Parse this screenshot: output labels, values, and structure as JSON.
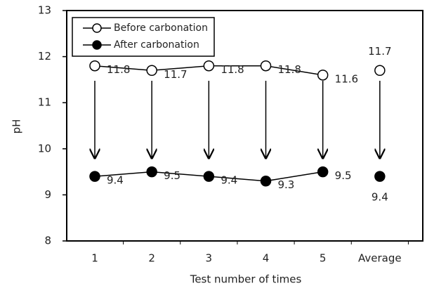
{
  "chart_data": {
    "type": "line",
    "x_label": "Test number of times",
    "y_label": "pH",
    "categories": [
      "1",
      "2",
      "3",
      "4",
      "5"
    ],
    "average_label": "Average",
    "series": [
      {
        "name": "Before carbonation",
        "color": "#000000",
        "marker": "open",
        "values": [
          11.8,
          11.7,
          11.8,
          11.8,
          11.6
        ],
        "average": 11.7
      },
      {
        "name": "After carbonation",
        "color": "#000000",
        "marker": "filled",
        "values": [
          9.4,
          9.5,
          9.4,
          9.3,
          9.5
        ],
        "average": 9.4
      }
    ],
    "ylim": [
      8,
      13
    ],
    "yticks": [
      8,
      9,
      10,
      11,
      12,
      13
    ]
  }
}
